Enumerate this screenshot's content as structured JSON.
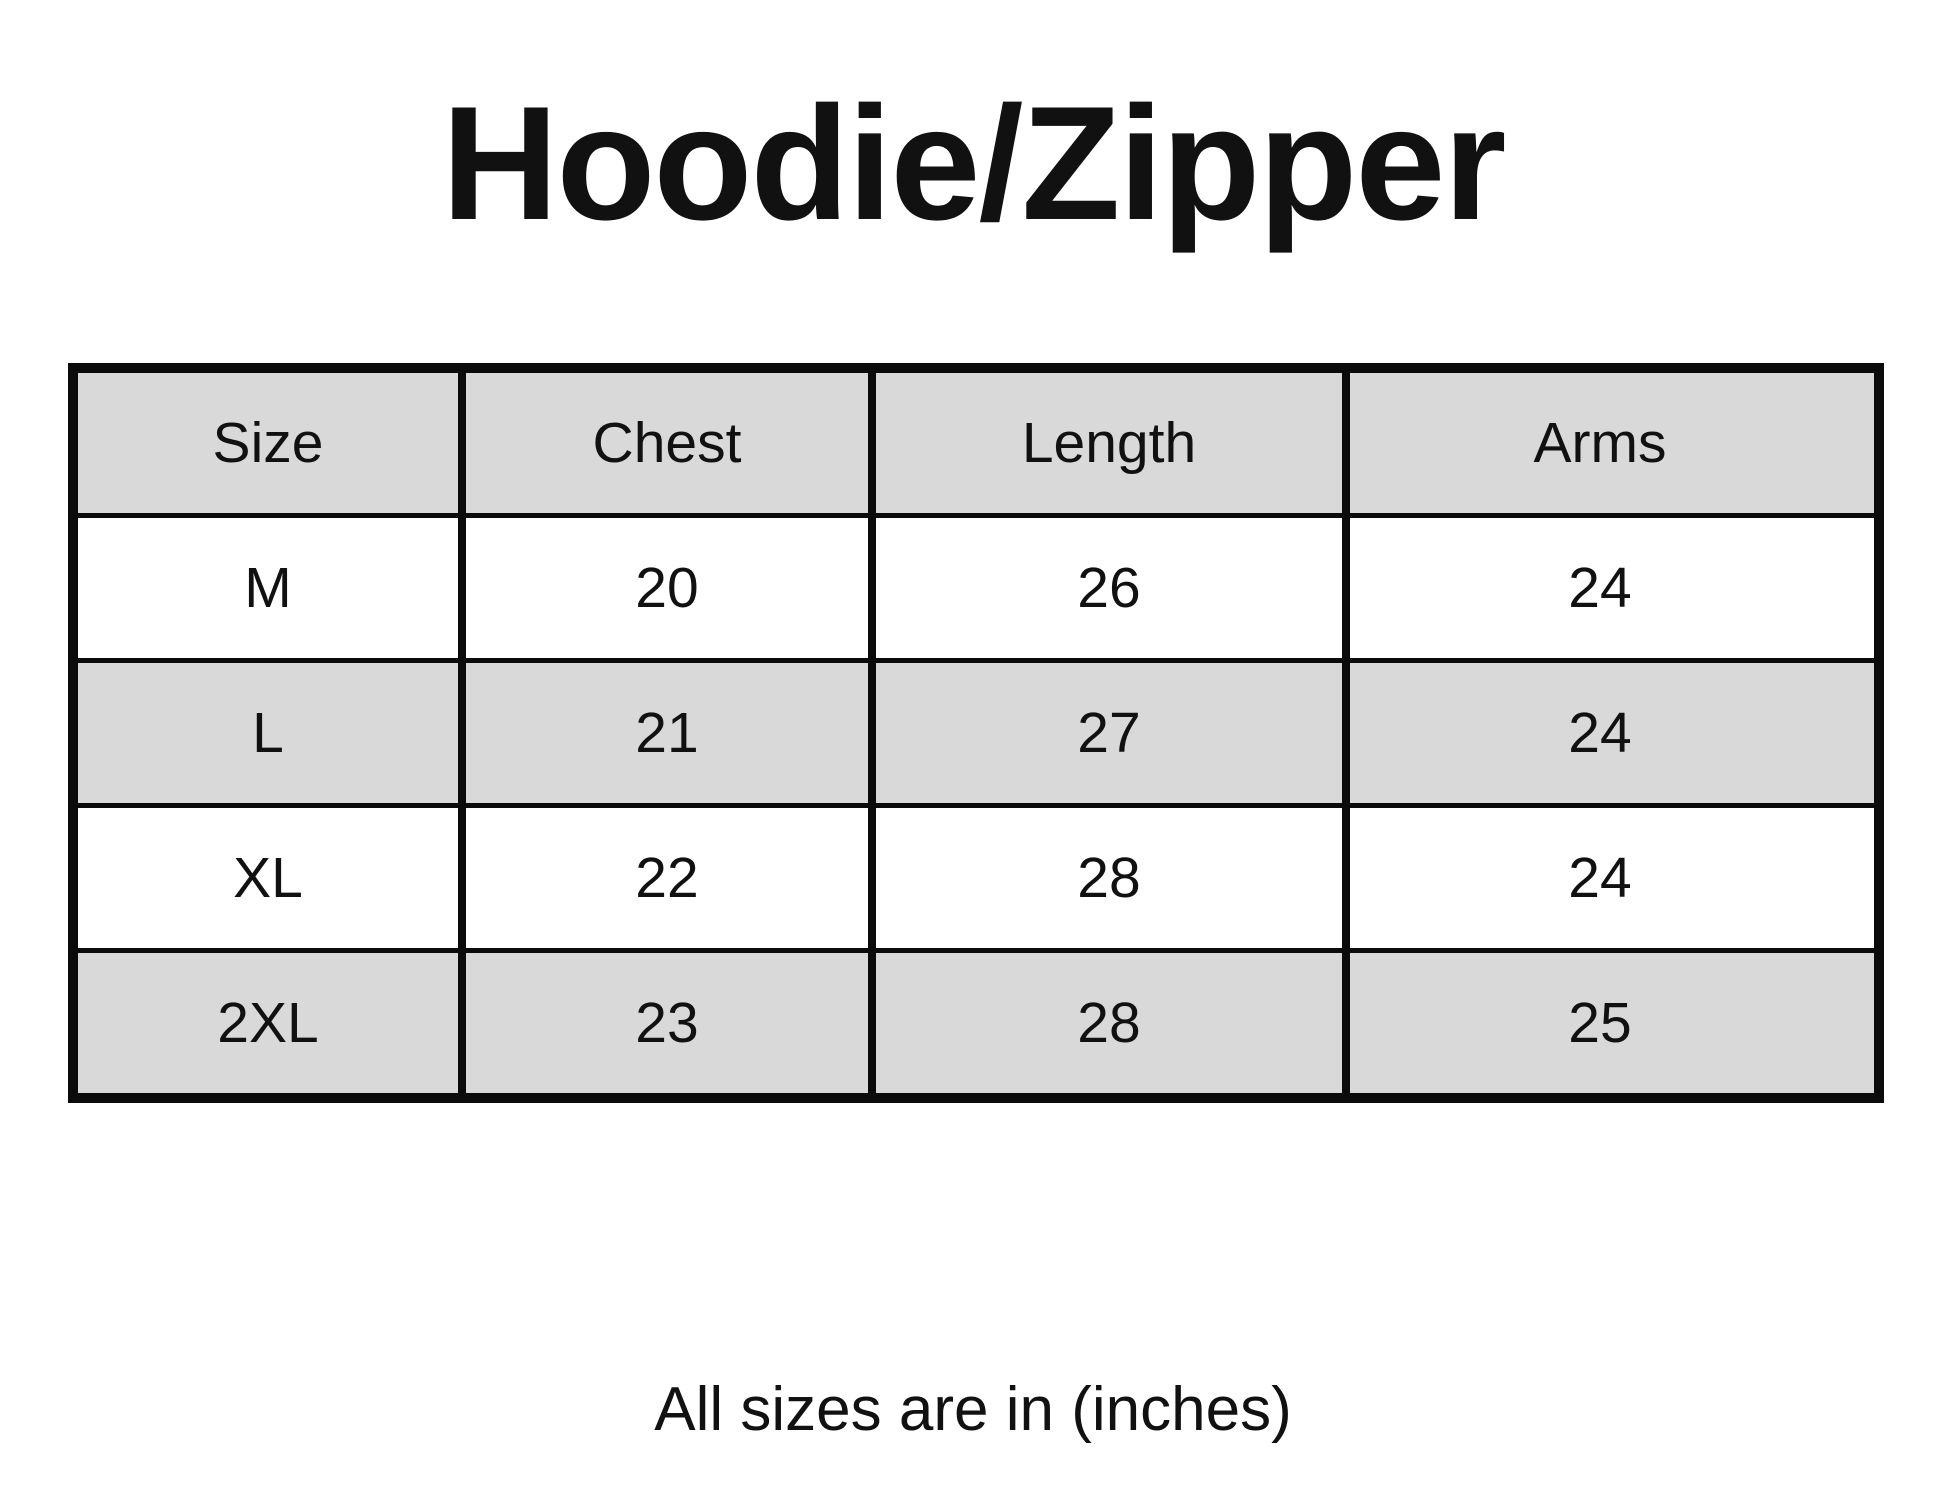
{
  "title": "Hoodie/Zipper",
  "colors": {
    "background": "#ffffff",
    "ink": "#111111",
    "border": "#0b0b0b",
    "header_row_bg": "#d9d9d9",
    "alt_row_bg": "#d9d9d9",
    "plain_row_bg": "#ffffff"
  },
  "table": {
    "headers": [
      "Size",
      "Chest",
      "Length",
      "Arms"
    ],
    "rows": [
      [
        "M",
        "20",
        "26",
        "24"
      ],
      [
        "L",
        "21",
        "27",
        "24"
      ],
      [
        "XL",
        "22",
        "28",
        "24"
      ],
      [
        "2XL",
        "23",
        "28",
        "25"
      ]
    ]
  },
  "footer": {
    "note": "All sizes are in (inches)"
  }
}
